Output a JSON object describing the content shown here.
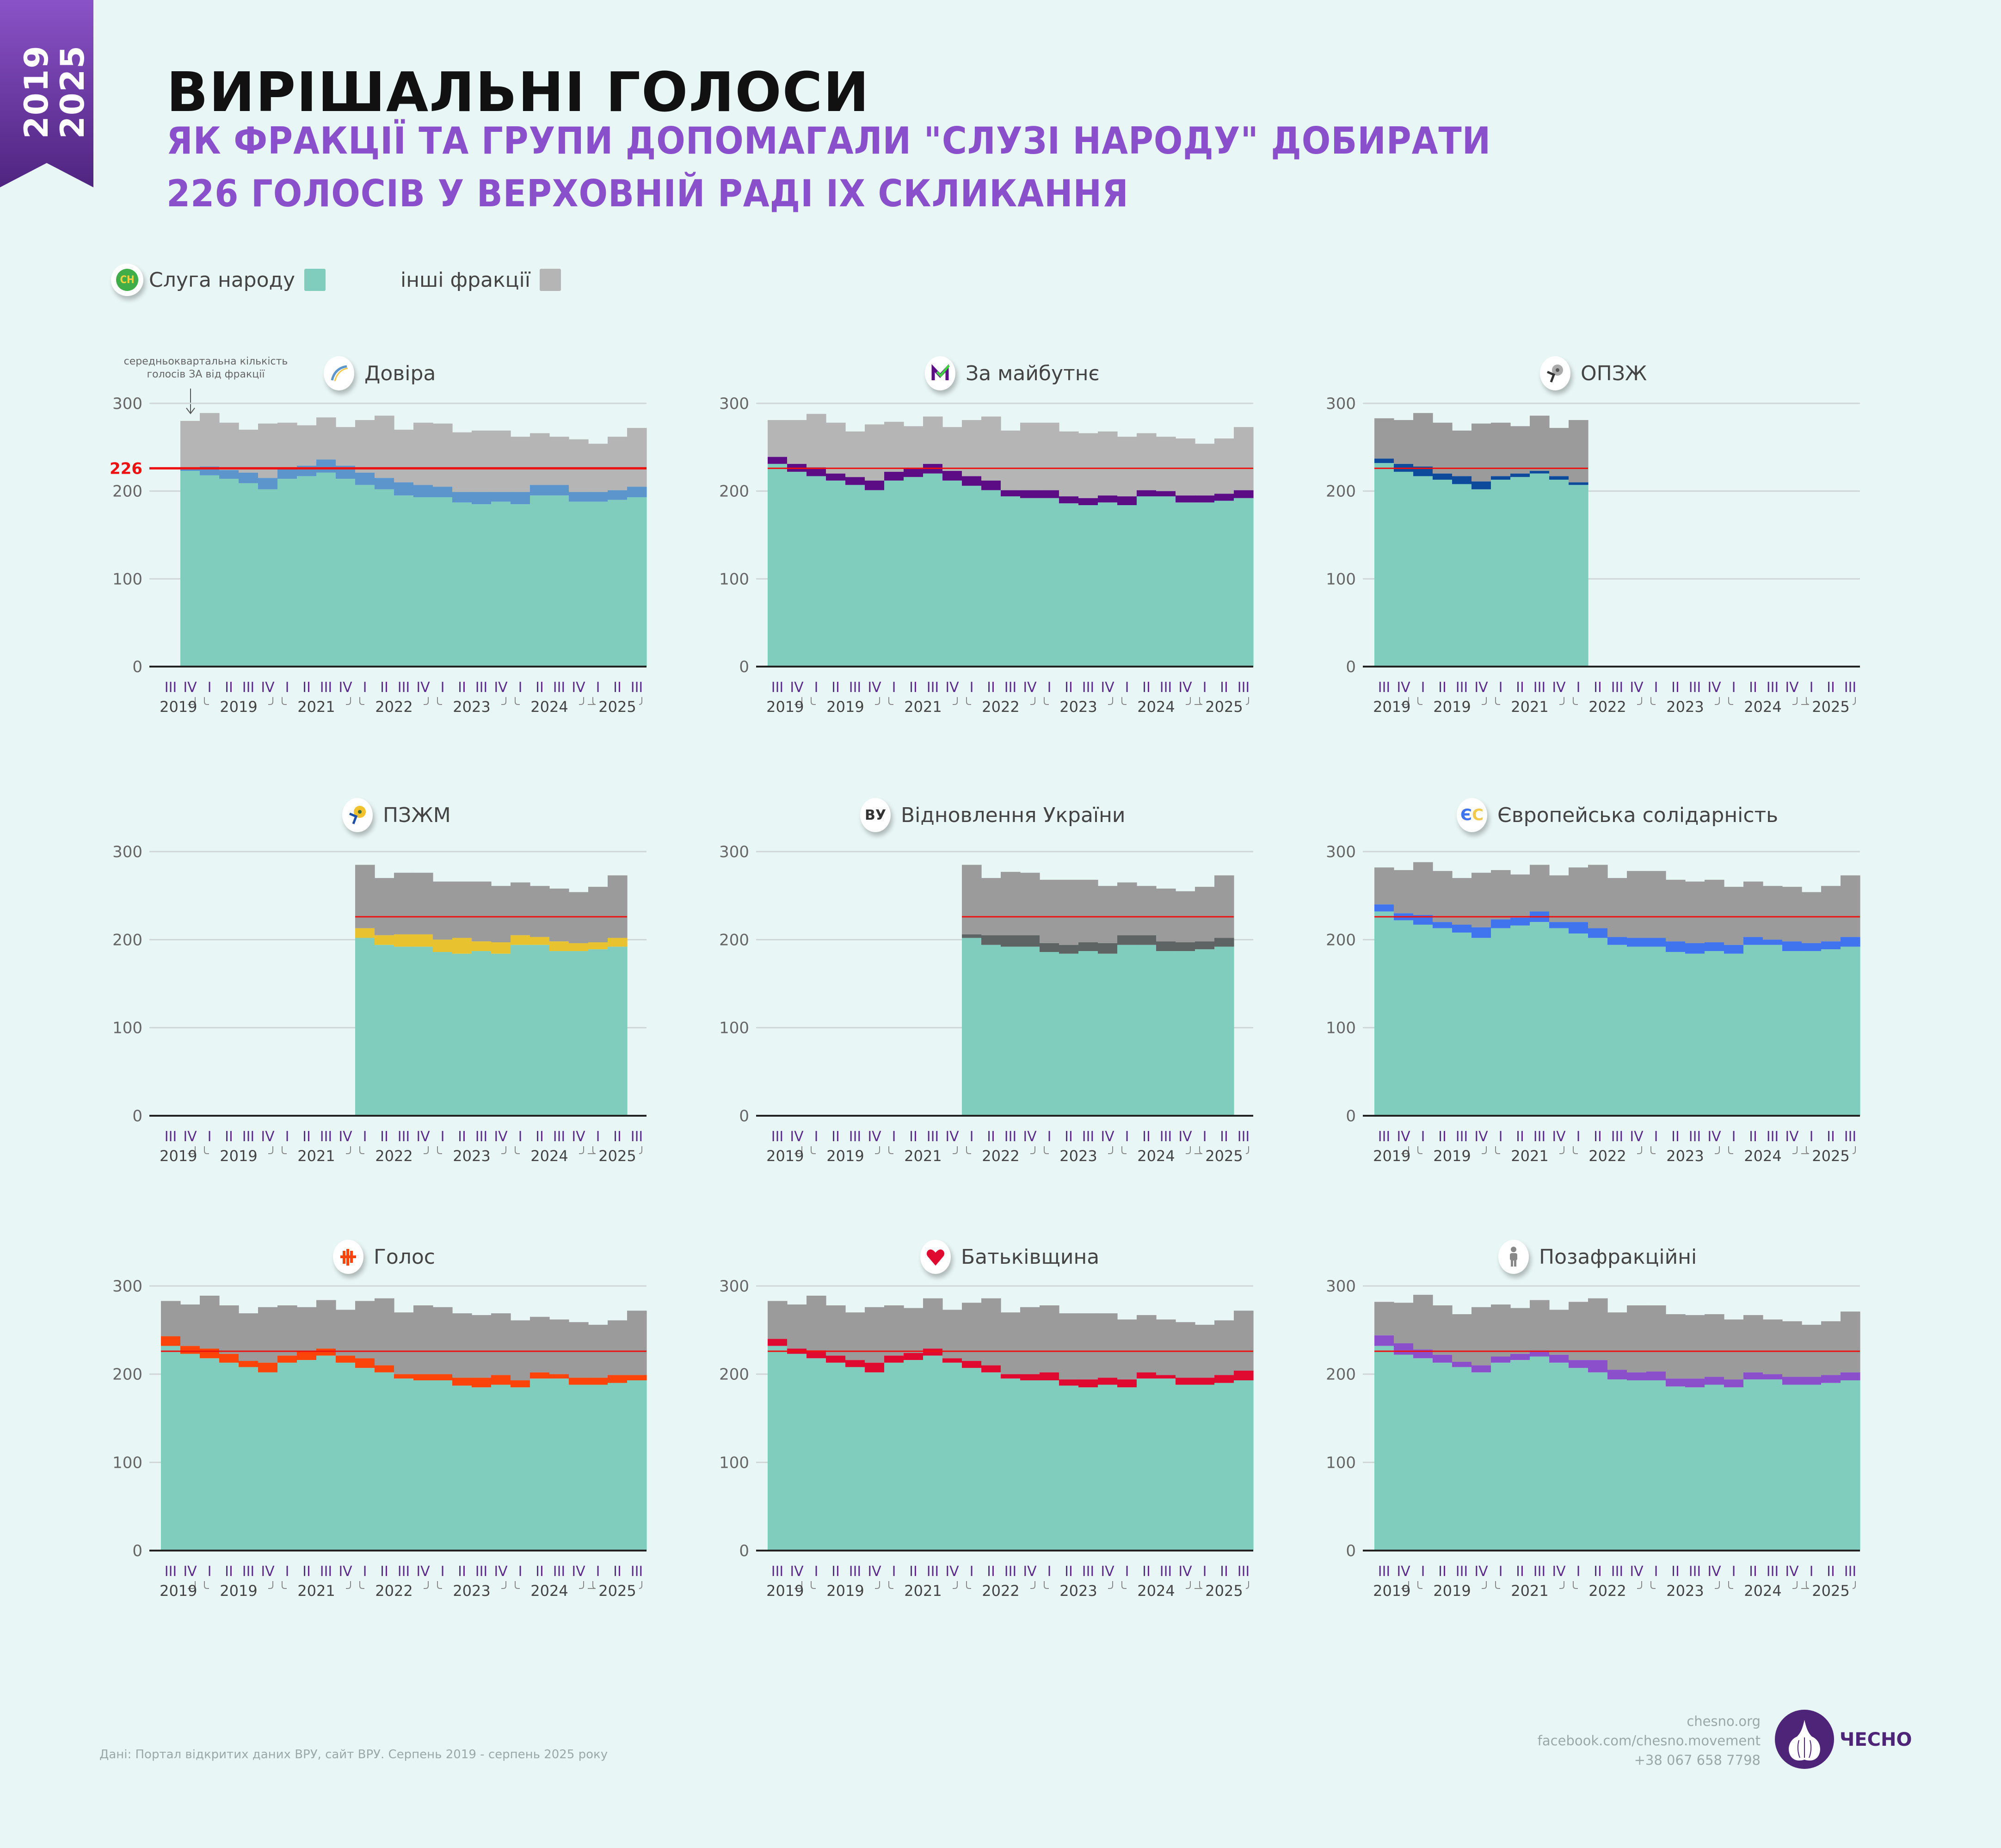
{
  "ribbon": {
    "years": [
      "2019",
      "2025"
    ]
  },
  "header": {
    "title": "ВИРІШАЛЬНІ ГОЛОСИ",
    "subtitle_line1": "ЯК ФРАКЦІЇ ТА ГРУПИ ДОПОМАГАЛИ \"СЛУЗІ НАРОДУ\" ДОБИРАТИ",
    "subtitle_line2": "226 ГОЛОСІВ У ВЕРХОВНІЙ РАДІ IX СКЛИКАННЯ"
  },
  "legend": {
    "servant": {
      "label": "Слуга народу",
      "logo_text": "СН",
      "color": "#80cdbd"
    },
    "others": {
      "label": "інші фракції",
      "color": "#b5b5b5"
    }
  },
  "annotation": {
    "line1": "середньоквартальна кількість",
    "line2": "голосів ЗА від фракції"
  },
  "footer": {
    "source": "Дані: Портал відкритих даних ВРУ, сайт ВРУ. Серпень 2019 - серпень 2025 року",
    "site": "chesno.org",
    "facebook": "facebook.com/chesno.movement",
    "phone": "+38 067 658 7798",
    "brand": "ЧЕСНО"
  },
  "chart_data": [
    {
      "type": "area",
      "title": "Довіра",
      "icon": "dovira-logo-icon",
      "faction_color": "#5b95cc",
      "others_color": "#b5b5b5",
      "ylim": [
        0,
        300
      ],
      "yticks": [
        0,
        100,
        200,
        300
      ],
      "threshold": 226,
      "threshold_label": "226",
      "start_index": 1,
      "series": [
        {
          "name": "Слуга народу",
          "values": [
            223,
            218,
            214,
            209,
            202,
            214,
            217,
            221,
            214,
            207,
            202,
            195,
            193,
            193,
            187,
            185,
            188,
            185,
            195,
            195,
            188,
            188,
            190,
            193
          ]
        },
        {
          "name": "Довіра",
          "values": [
            2,
            10,
            10,
            12,
            13,
            12,
            12,
            15,
            15,
            14,
            13,
            15,
            14,
            12,
            12,
            14,
            11,
            14,
            12,
            12,
            11,
            11,
            11,
            12
          ]
        },
        {
          "name": "інші фракції",
          "values": [
            55,
            61,
            54,
            49,
            62,
            52,
            46,
            48,
            44,
            60,
            71,
            60,
            71,
            72,
            68,
            70,
            70,
            63,
            59,
            55,
            60,
            55,
            61,
            67
          ]
        }
      ],
      "totals": [
        280,
        289,
        278,
        270,
        277,
        278,
        275,
        284,
        273,
        281,
        286,
        270,
        278,
        277,
        267,
        269,
        269,
        262,
        266,
        262,
        259,
        254,
        262,
        272
      ]
    },
    {
      "type": "area",
      "title": "За майбутнє",
      "icon": "za-maibutnie-logo-icon",
      "faction_color": "#5c0d86",
      "others_color": "#b5b5b5",
      "ylim": [
        0,
        300
      ],
      "threshold": 226,
      "start_index": 0,
      "series": [
        {
          "name": "Слуга народу",
          "values": [
            231,
            222,
            217,
            212,
            207,
            201,
            212,
            216,
            220,
            212,
            206,
            201,
            194,
            192,
            192,
            186,
            184,
            187,
            184,
            194,
            194,
            187,
            187,
            189,
            192
          ]
        },
        {
          "name": "За майбутнє",
          "values": [
            8,
            9,
            10,
            8,
            9,
            11,
            10,
            10,
            11,
            11,
            11,
            11,
            7,
            9,
            9,
            8,
            8,
            8,
            10,
            7,
            6,
            8,
            8,
            8,
            9
          ]
        },
        {
          "name": "інші фракції",
          "values": [
            42,
            50,
            61,
            58,
            52,
            64,
            57,
            48,
            54,
            50,
            64,
            74,
            68,
            77,
            77,
            74,
            74,
            73,
            72,
            65,
            66,
            65,
            59,
            63,
            72
          ]
        }
      ],
      "totals": [
        281,
        281,
        288,
        278,
        268,
        276,
        279,
        274,
        285,
        273,
        281,
        285,
        269,
        278,
        278,
        268,
        266,
        268,
        262,
        266,
        262,
        260,
        254,
        260,
        273
      ]
    },
    {
      "type": "area",
      "title": "ОПЗЖ",
      "icon": "opzzh-logo-icon",
      "faction_color": "#0d4a9c",
      "others_color": "#9b9b9b",
      "ylim": [
        0,
        300
      ],
      "threshold": 226,
      "start_index": 0,
      "series": [
        {
          "name": "Слуга народу",
          "values": [
            232,
            222,
            217,
            213,
            208,
            202,
            213,
            216,
            220,
            213,
            207
          ]
        },
        {
          "name": "ОПЗЖ",
          "values": [
            5,
            9,
            11,
            7,
            9,
            9,
            4,
            4,
            3,
            4,
            3
          ]
        },
        {
          "name": "інші фракції",
          "values": [
            46,
            50,
            61,
            58,
            52,
            66,
            61,
            54,
            63,
            55,
            71
          ]
        }
      ],
      "totals": [
        283,
        281,
        289,
        278,
        269,
        277,
        278,
        274,
        286,
        272,
        281
      ]
    },
    {
      "type": "area",
      "title": "ПЗЖМ",
      "icon": "pzzhm-logo-icon",
      "faction_color": "#e9c32f",
      "others_color": "#9b9b9b",
      "ylim": [
        0,
        300
      ],
      "threshold": 226,
      "start_index": 10,
      "series": [
        {
          "name": "Слуга народу",
          "values": [
            202,
            194,
            192,
            192,
            186,
            184,
            187,
            184,
            194,
            194,
            187,
            187,
            189,
            192
          ]
        },
        {
          "name": "ПЗЖМ",
          "values": [
            11,
            11,
            14,
            14,
            14,
            18,
            11,
            13,
            11,
            9,
            11,
            9,
            8,
            10
          ]
        },
        {
          "name": "інші фракції",
          "values": [
            72,
            65,
            70,
            70,
            66,
            64,
            68,
            64,
            60,
            58,
            60,
            58,
            63,
            71
          ]
        }
      ],
      "totals": [
        285,
        270,
        276,
        276,
        266,
        266,
        266,
        261,
        265,
        261,
        258,
        254,
        260,
        273
      ]
    },
    {
      "type": "area",
      "title": "Відновлення України",
      "icon": "vu-logo-icon",
      "logo_text": "ВУ",
      "faction_color": "#5d6463",
      "others_color": "#9b9b9b",
      "ylim": [
        0,
        300
      ],
      "threshold": 226,
      "start_index": 10,
      "series": [
        {
          "name": "Слуга народу",
          "values": [
            202,
            194,
            192,
            192,
            186,
            184,
            187,
            184,
            194,
            194,
            187,
            187,
            189,
            192
          ]
        },
        {
          "name": "Відновлення України",
          "values": [
            4,
            11,
            13,
            13,
            10,
            10,
            10,
            12,
            11,
            11,
            11,
            10,
            9,
            10
          ]
        },
        {
          "name": "інші фракції",
          "values": [
            79,
            65,
            72,
            71,
            72,
            74,
            71,
            65,
            60,
            56,
            60,
            58,
            62,
            71
          ]
        }
      ],
      "totals": [
        285,
        270,
        277,
        276,
        268,
        268,
        268,
        261,
        265,
        261,
        258,
        255,
        260,
        273
      ]
    },
    {
      "type": "area",
      "title": "Європейська солідарність",
      "icon": "es-logo-icon",
      "logo_text": "ЄС",
      "faction_color": "#3f74ee",
      "others_color": "#9b9b9b",
      "ylim": [
        0,
        300
      ],
      "threshold": 226,
      "start_index": 0,
      "series": [
        {
          "name": "Слуга народу",
          "values": [
            232,
            222,
            217,
            213,
            208,
            202,
            213,
            216,
            220,
            213,
            207,
            202,
            194,
            192,
            192,
            186,
            184,
            187,
            184,
            194,
            194,
            187,
            187,
            189,
            192
          ]
        },
        {
          "name": "Європейська солідарність",
          "values": [
            8,
            8,
            11,
            7,
            9,
            12,
            10,
            9,
            12,
            7,
            13,
            11,
            9,
            10,
            10,
            12,
            12,
            10,
            10,
            9,
            6,
            11,
            9,
            9,
            11
          ]
        },
        {
          "name": "інші фракції",
          "values": [
            42,
            49,
            60,
            58,
            53,
            62,
            56,
            49,
            53,
            53,
            62,
            72,
            67,
            76,
            76,
            70,
            70,
            71,
            66,
            63,
            61,
            62,
            58,
            63,
            70
          ]
        }
      ],
      "totals": [
        282,
        279,
        288,
        278,
        270,
        276,
        279,
        274,
        285,
        273,
        282,
        285,
        270,
        278,
        278,
        268,
        266,
        268,
        260,
        266,
        261,
        260,
        254,
        261,
        273
      ]
    },
    {
      "type": "area",
      "title": "Голос",
      "icon": "holos-logo-icon",
      "faction_color": "#fb4409",
      "others_color": "#9b9b9b",
      "ylim": [
        0,
        300
      ],
      "threshold": 226,
      "start_index": 0,
      "series": [
        {
          "name": "Слуга народу",
          "values": [
            232,
            223,
            218,
            213,
            208,
            202,
            213,
            216,
            221,
            213,
            207,
            202,
            195,
            193,
            193,
            187,
            185,
            188,
            185,
            195,
            195,
            188,
            188,
            190,
            193
          ]
        },
        {
          "name": "Голос",
          "values": [
            11,
            9,
            11,
            10,
            7,
            11,
            8,
            10,
            8,
            8,
            11,
            8,
            5,
            7,
            7,
            9,
            11,
            11,
            8,
            7,
            5,
            8,
            8,
            9,
            6
          ]
        },
        {
          "name": "інші фракції",
          "values": [
            40,
            47,
            60,
            55,
            54,
            63,
            57,
            50,
            55,
            52,
            65,
            76,
            70,
            78,
            76,
            73,
            71,
            70,
            68,
            63,
            62,
            63,
            60,
            62,
            73
          ]
        }
      ],
      "totals": [
        283,
        279,
        289,
        278,
        269,
        276,
        278,
        276,
        284,
        273,
        283,
        286,
        270,
        278,
        276,
        269,
        267,
        269,
        261,
        265,
        262,
        259,
        256,
        261,
        272
      ]
    },
    {
      "type": "area",
      "title": "Батьківщина",
      "icon": "batkivshchyna-heart-icon",
      "faction_color": "#e00a30",
      "others_color": "#9b9b9b",
      "ylim": [
        0,
        300
      ],
      "threshold": 226,
      "start_index": 0,
      "series": [
        {
          "name": "Слуга народу",
          "values": [
            232,
            223,
            218,
            213,
            208,
            202,
            213,
            216,
            221,
            213,
            207,
            202,
            195,
            193,
            193,
            187,
            185,
            188,
            185,
            195,
            195,
            188,
            188,
            190,
            193
          ]
        },
        {
          "name": "Батьківщина",
          "values": [
            8,
            6,
            9,
            8,
            8,
            11,
            8,
            8,
            8,
            5,
            8,
            8,
            5,
            7,
            9,
            7,
            9,
            8,
            9,
            7,
            4,
            8,
            8,
            9,
            11
          ]
        },
        {
          "name": "інші фракції",
          "values": [
            43,
            50,
            62,
            57,
            54,
            63,
            57,
            51,
            57,
            55,
            66,
            76,
            70,
            76,
            76,
            75,
            75,
            73,
            68,
            65,
            63,
            63,
            60,
            62,
            68
          ]
        }
      ],
      "totals": [
        283,
        279,
        289,
        278,
        270,
        276,
        278,
        275,
        286,
        273,
        281,
        286,
        270,
        276,
        278,
        269,
        269,
        269,
        262,
        267,
        262,
        259,
        256,
        261,
        272
      ]
    },
    {
      "type": "area",
      "title": "Позафракційні",
      "icon": "person-icon",
      "faction_color": "#8b4fcc",
      "others_color": "#9b9b9b",
      "ylim": [
        0,
        300
      ],
      "threshold": 226,
      "start_index": 0,
      "series": [
        {
          "name": "Слуга народу",
          "values": [
            232,
            222,
            218,
            213,
            208,
            202,
            213,
            216,
            220,
            213,
            207,
            202,
            194,
            193,
            193,
            186,
            185,
            188,
            185,
            194,
            194,
            188,
            188,
            190,
            193
          ]
        },
        {
          "name": "Позафракційні",
          "values": [
            12,
            13,
            10,
            9,
            6,
            8,
            7,
            7,
            7,
            9,
            9,
            14,
            11,
            9,
            10,
            9,
            10,
            9,
            9,
            8,
            6,
            9,
            9,
            9,
            9
          ]
        },
        {
          "name": "інші фракції",
          "values": [
            38,
            46,
            62,
            56,
            54,
            66,
            59,
            52,
            57,
            51,
            66,
            70,
            65,
            76,
            75,
            73,
            72,
            71,
            68,
            65,
            62,
            63,
            59,
            61,
            69
          ]
        }
      ],
      "totals": [
        282,
        281,
        290,
        278,
        268,
        276,
        279,
        275,
        284,
        273,
        282,
        286,
        270,
        278,
        278,
        268,
        267,
        268,
        262,
        267,
        262,
        260,
        256,
        260,
        271
      ]
    }
  ],
  "axis": {
    "quarters": [
      "III",
      "IV",
      "I",
      "II",
      "III",
      "IV",
      "I",
      "II",
      "III",
      "IV",
      "I",
      "II",
      "III",
      "IV",
      "I",
      "II",
      "III",
      "IV",
      "I",
      "II",
      "III",
      "IV",
      "I",
      "II",
      "III"
    ],
    "years": [
      "2019",
      "2019",
      "2021",
      "2022",
      "2023",
      "2024",
      "2025"
    ],
    "yticks": [
      "0",
      "100",
      "200",
      "300"
    ]
  }
}
